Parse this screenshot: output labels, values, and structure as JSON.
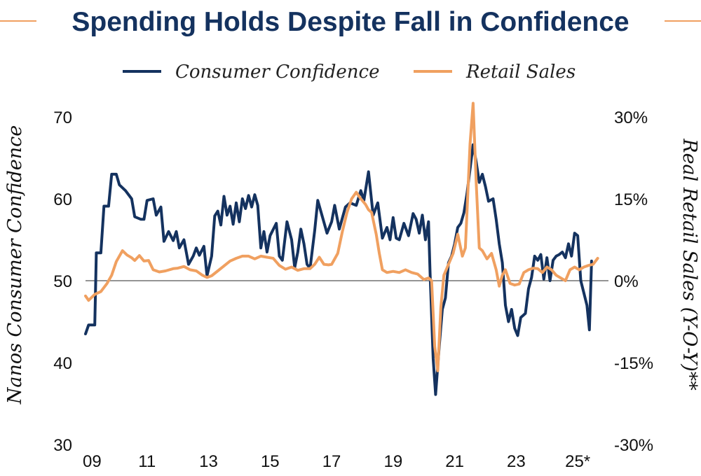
{
  "colors": {
    "navy": "#14325f",
    "orange": "#f0a060",
    "zero_line": "#555555"
  },
  "chart_data": {
    "type": "line",
    "title": "Spending Holds Despite Fall in Confidence",
    "grid": false,
    "legend_position": "top-center",
    "x_ticks": [
      "09",
      "11",
      "13",
      "15",
      "17",
      "19",
      "21",
      "23",
      "25*"
    ],
    "xlim": [
      2009,
      2026.0
    ],
    "y_left": {
      "label": "Nanos Consumer Confidence",
      "ylim": [
        30,
        70
      ],
      "ticks": [
        "30",
        "40",
        "50",
        "60",
        "70"
      ]
    },
    "y_right": {
      "label": "Real Retail Sales (Y-O-Y)**",
      "ylim": [
        -30,
        30
      ],
      "ticks": [
        "-30%",
        "-15%",
        "0%",
        "15%",
        "30%"
      ]
    },
    "series": [
      {
        "name": "Consumer Confidence",
        "axis": "left",
        "color": "#14325f",
        "points": [
          [
            2009.0,
            43.5
          ],
          [
            2009.1,
            44.6
          ],
          [
            2009.3,
            44.6
          ],
          [
            2009.35,
            53.4
          ],
          [
            2009.5,
            53.4
          ],
          [
            2009.6,
            59.1
          ],
          [
            2009.75,
            59.1
          ],
          [
            2009.85,
            63.0
          ],
          [
            2010.0,
            63.0
          ],
          [
            2010.1,
            61.7
          ],
          [
            2010.3,
            61.0
          ],
          [
            2010.5,
            60.0
          ],
          [
            2010.6,
            57.8
          ],
          [
            2010.8,
            57.5
          ],
          [
            2010.9,
            57.5
          ],
          [
            2011.0,
            59.8
          ],
          [
            2011.2,
            60.0
          ],
          [
            2011.3,
            58.0
          ],
          [
            2011.45,
            59.0
          ],
          [
            2011.55,
            54.8
          ],
          [
            2011.7,
            56.0
          ],
          [
            2011.85,
            54.9
          ],
          [
            2011.95,
            56.0
          ],
          [
            2012.05,
            54.0
          ],
          [
            2012.2,
            55.0
          ],
          [
            2012.35,
            52.0
          ],
          [
            2012.5,
            53.0
          ],
          [
            2012.6,
            54.0
          ],
          [
            2012.7,
            53.1
          ],
          [
            2012.85,
            54.2
          ],
          [
            2012.95,
            50.6
          ],
          [
            2013.1,
            53.0
          ],
          [
            2013.2,
            57.9
          ],
          [
            2013.3,
            58.5
          ],
          [
            2013.4,
            56.8
          ],
          [
            2013.5,
            60.3
          ],
          [
            2013.6,
            58.0
          ],
          [
            2013.7,
            59.1
          ],
          [
            2013.8,
            56.9
          ],
          [
            2013.9,
            59.5
          ],
          [
            2014.0,
            57.2
          ],
          [
            2014.1,
            60.0
          ],
          [
            2014.2,
            58.8
          ],
          [
            2014.3,
            60.4
          ],
          [
            2014.4,
            59.0
          ],
          [
            2014.5,
            60.5
          ],
          [
            2014.6,
            59.2
          ],
          [
            2014.7,
            54.0
          ],
          [
            2014.8,
            56.0
          ],
          [
            2014.9,
            53.5
          ],
          [
            2015.0,
            55.5
          ],
          [
            2015.2,
            57.0
          ],
          [
            2015.3,
            53.0
          ],
          [
            2015.4,
            52.5
          ],
          [
            2015.55,
            57.2
          ],
          [
            2015.7,
            55.0
          ],
          [
            2015.8,
            51.6
          ],
          [
            2015.9,
            53.5
          ],
          [
            2016.0,
            56.3
          ],
          [
            2016.1,
            54.5
          ],
          [
            2016.2,
            52.0
          ],
          [
            2016.3,
            51.5
          ],
          [
            2016.45,
            56.1
          ],
          [
            2016.55,
            59.8
          ],
          [
            2016.7,
            57.8
          ],
          [
            2016.85,
            55.8
          ],
          [
            2017.0,
            57.2
          ],
          [
            2017.1,
            59.2
          ],
          [
            2017.25,
            56.3
          ],
          [
            2017.45,
            59.0
          ],
          [
            2017.6,
            59.5
          ],
          [
            2017.8,
            59.2
          ],
          [
            2017.95,
            61.0
          ],
          [
            2018.05,
            59.8
          ],
          [
            2018.2,
            63.3
          ],
          [
            2018.35,
            58.0
          ],
          [
            2018.5,
            59.5
          ],
          [
            2018.65,
            55.2
          ],
          [
            2018.8,
            56.5
          ],
          [
            2018.9,
            55.0
          ],
          [
            2019.0,
            57.7
          ],
          [
            2019.1,
            55.2
          ],
          [
            2019.2,
            55.0
          ],
          [
            2019.35,
            57.0
          ],
          [
            2019.5,
            55.5
          ],
          [
            2019.65,
            58.2
          ],
          [
            2019.75,
            57.5
          ],
          [
            2019.85,
            55.8
          ],
          [
            2019.95,
            58.0
          ],
          [
            2020.05,
            55.0
          ],
          [
            2020.15,
            57.2
          ],
          [
            2020.2,
            51.0
          ],
          [
            2020.3,
            40.5
          ],
          [
            2020.38,
            36.1
          ],
          [
            2020.5,
            42.0
          ],
          [
            2020.6,
            46.5
          ],
          [
            2020.7,
            47.9
          ],
          [
            2020.8,
            52.2
          ],
          [
            2020.9,
            53.0
          ],
          [
            2021.0,
            54.5
          ],
          [
            2021.1,
            56.5
          ],
          [
            2021.2,
            57.0
          ],
          [
            2021.3,
            58.3
          ],
          [
            2021.4,
            60.6
          ],
          [
            2021.5,
            63.6
          ],
          [
            2021.6,
            66.6
          ],
          [
            2021.7,
            64.5
          ],
          [
            2021.8,
            62.0
          ],
          [
            2021.9,
            63.0
          ],
          [
            2022.0,
            61.5
          ],
          [
            2022.1,
            59.7
          ],
          [
            2022.25,
            60.0
          ],
          [
            2022.35,
            57.5
          ],
          [
            2022.45,
            54.5
          ],
          [
            2022.55,
            52.2
          ],
          [
            2022.65,
            47.0
          ],
          [
            2022.75,
            45.0
          ],
          [
            2022.85,
            46.5
          ],
          [
            2022.95,
            44.2
          ],
          [
            2023.05,
            43.3
          ],
          [
            2023.15,
            45.5
          ],
          [
            2023.3,
            46.0
          ],
          [
            2023.4,
            49.0
          ],
          [
            2023.5,
            50.4
          ],
          [
            2023.6,
            53.0
          ],
          [
            2023.7,
            52.5
          ],
          [
            2023.8,
            53.2
          ],
          [
            2023.9,
            50.2
          ],
          [
            2024.0,
            52.8
          ],
          [
            2024.1,
            50.0
          ],
          [
            2024.2,
            52.5
          ],
          [
            2024.3,
            53.0
          ],
          [
            2024.4,
            53.2
          ],
          [
            2024.5,
            53.5
          ],
          [
            2024.6,
            52.8
          ],
          [
            2024.7,
            54.5
          ],
          [
            2024.8,
            53.0
          ],
          [
            2024.9,
            55.8
          ],
          [
            2025.0,
            55.5
          ],
          [
            2025.1,
            50.0
          ],
          [
            2025.2,
            48.5
          ],
          [
            2025.3,
            47.0
          ],
          [
            2025.38,
            44.0
          ],
          [
            2025.45,
            52.4
          ]
        ]
      },
      {
        "name": "Retail Sales",
        "axis": "right",
        "color": "#f0a060",
        "points": [
          [
            2009.0,
            -2.8
          ],
          [
            2009.1,
            -3.6
          ],
          [
            2009.3,
            -2.5
          ],
          [
            2009.5,
            -2.0
          ],
          [
            2009.7,
            -0.5
          ],
          [
            2009.85,
            1.0
          ],
          [
            2010.0,
            3.5
          ],
          [
            2010.2,
            5.5
          ],
          [
            2010.35,
            4.7
          ],
          [
            2010.5,
            4.2
          ],
          [
            2010.6,
            3.7
          ],
          [
            2010.75,
            4.6
          ],
          [
            2010.9,
            3.6
          ],
          [
            2011.05,
            3.7
          ],
          [
            2011.2,
            2.0
          ],
          [
            2011.4,
            1.6
          ],
          [
            2011.6,
            1.8
          ],
          [
            2011.85,
            2.2
          ],
          [
            2012.0,
            2.3
          ],
          [
            2012.2,
            2.6
          ],
          [
            2012.4,
            2.0
          ],
          [
            2012.6,
            1.8
          ],
          [
            2012.8,
            1.0
          ],
          [
            2012.95,
            0.6
          ],
          [
            2013.1,
            0.9
          ],
          [
            2013.3,
            1.8
          ],
          [
            2013.5,
            2.7
          ],
          [
            2013.7,
            3.6
          ],
          [
            2013.9,
            4.1
          ],
          [
            2014.1,
            4.5
          ],
          [
            2014.3,
            4.5
          ],
          [
            2014.5,
            4.0
          ],
          [
            2014.7,
            4.5
          ],
          [
            2014.9,
            4.3
          ],
          [
            2015.1,
            4.1
          ],
          [
            2015.3,
            2.8
          ],
          [
            2015.5,
            2.1
          ],
          [
            2015.7,
            2.5
          ],
          [
            2015.9,
            1.9
          ],
          [
            2016.1,
            2.2
          ],
          [
            2016.3,
            2.2
          ],
          [
            2016.45,
            3.0
          ],
          [
            2016.6,
            4.3
          ],
          [
            2016.75,
            3.0
          ],
          [
            2016.9,
            2.9
          ],
          [
            2017.0,
            3.0
          ],
          [
            2017.2,
            5.0
          ],
          [
            2017.35,
            9.0
          ],
          [
            2017.5,
            12.5
          ],
          [
            2017.65,
            15.0
          ],
          [
            2017.8,
            16.2
          ],
          [
            2017.95,
            15.0
          ],
          [
            2018.1,
            14.0
          ],
          [
            2018.2,
            13.0
          ],
          [
            2018.3,
            12.5
          ],
          [
            2018.45,
            8.5
          ],
          [
            2018.55,
            5.0
          ],
          [
            2018.65,
            2.0
          ],
          [
            2018.8,
            1.5
          ],
          [
            2019.0,
            1.7
          ],
          [
            2019.2,
            1.5
          ],
          [
            2019.4,
            2.0
          ],
          [
            2019.6,
            1.5
          ],
          [
            2019.8,
            1.2
          ],
          [
            2020.0,
            0.2
          ],
          [
            2020.15,
            0.5
          ],
          [
            2020.25,
            0.0
          ],
          [
            2020.35,
            -12.0
          ],
          [
            2020.45,
            -16.5
          ],
          [
            2020.55,
            -5.0
          ],
          [
            2020.65,
            1.0
          ],
          [
            2020.8,
            3.0
          ],
          [
            2020.95,
            5.0
          ],
          [
            2021.1,
            8.5
          ],
          [
            2021.25,
            4.5
          ],
          [
            2021.35,
            6.0
          ],
          [
            2021.5,
            25.0
          ],
          [
            2021.6,
            32.5
          ],
          [
            2021.7,
            18.0
          ],
          [
            2021.8,
            6.0
          ],
          [
            2021.9,
            5.5
          ],
          [
            2022.05,
            4.0
          ],
          [
            2022.2,
            5.0
          ],
          [
            2022.35,
            2.0
          ],
          [
            2022.45,
            -1.0
          ],
          [
            2022.55,
            1.0
          ],
          [
            2022.65,
            2.0
          ],
          [
            2022.8,
            -0.5
          ],
          [
            2022.95,
            -0.8
          ],
          [
            2023.1,
            -0.6
          ],
          [
            2023.25,
            1.5
          ],
          [
            2023.4,
            2.0
          ],
          [
            2023.55,
            2.3
          ],
          [
            2023.7,
            2.2
          ],
          [
            2023.85,
            1.5
          ],
          [
            2024.0,
            2.5
          ],
          [
            2024.15,
            2.0
          ],
          [
            2024.3,
            1.0
          ],
          [
            2024.45,
            0.5
          ],
          [
            2024.6,
            0.0
          ],
          [
            2024.75,
            2.0
          ],
          [
            2024.9,
            2.5
          ],
          [
            2025.05,
            2.0
          ],
          [
            2025.2,
            2.5
          ],
          [
            2025.35,
            2.8
          ],
          [
            2025.5,
            3.0
          ],
          [
            2025.65,
            4.1
          ]
        ]
      }
    ]
  }
}
